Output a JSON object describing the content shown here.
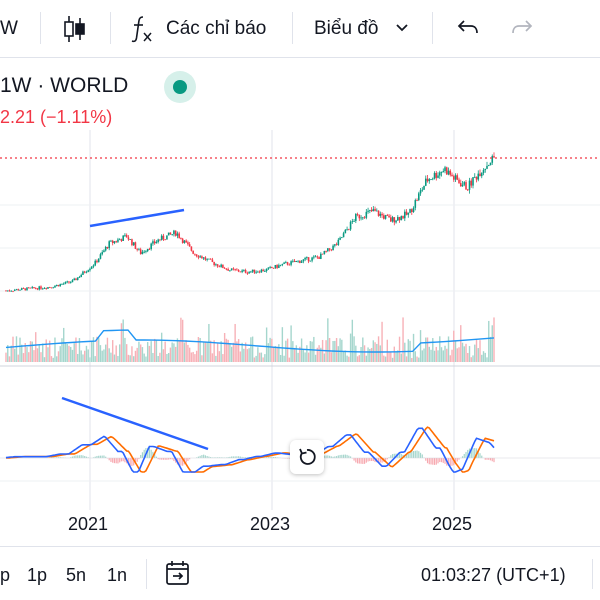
{
  "toolbar": {
    "interval_partial": "W",
    "indicators_label": "Các chỉ báo",
    "chart_type_label": "Biểu đồ"
  },
  "legend": {
    "title": "1W · WORLD",
    "change": "2.21 (−1.11%)",
    "status_color": "#089981"
  },
  "axis": {
    "x_labels": [
      "2021",
      "2023",
      "2025"
    ]
  },
  "bottom": {
    "ranges": [
      "p",
      "1p",
      "5n",
      "1n"
    ],
    "time": "01:03:27 (UTC+1)"
  },
  "colors": {
    "up": "#089981",
    "down": "#f23645",
    "trendline": "#2962ff",
    "volume_ma": "#2196f3",
    "macd": "#2962ff",
    "signal": "#ff6d00"
  },
  "chart_data": {
    "type": "line",
    "x": [
      2020.0,
      2020.25,
      2020.5,
      2020.75,
      2021.0,
      2021.15,
      2021.35,
      2021.5,
      2021.7,
      2021.9,
      2022.1,
      2022.3,
      2022.5,
      2022.7,
      2022.9,
      2023.1,
      2023.3,
      2023.5,
      2023.7,
      2023.9,
      2024.1,
      2024.3,
      2024.5,
      2024.7,
      2024.9,
      2025.0,
      2025.15,
      2025.3,
      2025.45
    ],
    "series": [
      {
        "values": [
          50,
          52,
          54,
          60,
          80,
          100,
          108,
          90,
          104,
          112,
          90,
          80,
          72,
          70,
          72,
          78,
          82,
          86,
          100,
          128,
          135,
          125,
          132,
          168,
          180,
          170,
          160,
          178,
          192
        ]
      }
    ]
  }
}
